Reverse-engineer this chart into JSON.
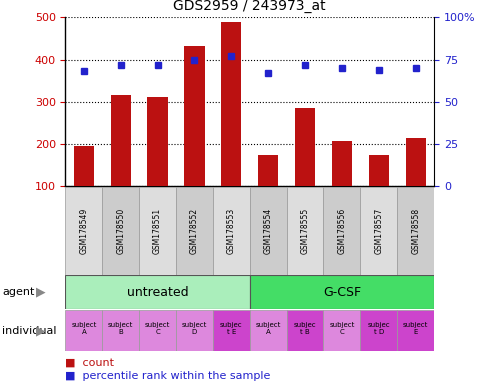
{
  "title": "GDS2959 / 243973_at",
  "samples": [
    "GSM178549",
    "GSM178550",
    "GSM178551",
    "GSM178552",
    "GSM178553",
    "GSM178554",
    "GSM178555",
    "GSM178556",
    "GSM178557",
    "GSM178558"
  ],
  "counts": [
    195,
    315,
    312,
    432,
    490,
    175,
    285,
    208,
    173,
    215
  ],
  "percentile_ranks": [
    68,
    72,
    72,
    75,
    77,
    67,
    72,
    70,
    69,
    70
  ],
  "ylim_left": [
    100,
    500
  ],
  "ylim_right": [
    0,
    100
  ],
  "yticks_left": [
    100,
    200,
    300,
    400,
    500
  ],
  "yticks_right": [
    0,
    25,
    50,
    75,
    100
  ],
  "ytick_labels_right": [
    "0",
    "25",
    "50",
    "75",
    "100%"
  ],
  "bar_color": "#bb1111",
  "dot_color": "#2222cc",
  "agent_groups": [
    {
      "label": "untreated",
      "start": 0,
      "end": 5,
      "color": "#aaeebb"
    },
    {
      "label": "G-CSF",
      "start": 5,
      "end": 10,
      "color": "#44dd66"
    }
  ],
  "individual_labels": [
    "subject\nA",
    "subject\nB",
    "subject\nC",
    "subject\nD",
    "subjec\nt E",
    "subject\nA",
    "subjec\nt B",
    "subject\nC",
    "subjec\nt D",
    "subject\nE"
  ],
  "individual_colors": [
    "#dd88dd",
    "#dd88dd",
    "#dd88dd",
    "#dd88dd",
    "#cc44cc",
    "#dd88dd",
    "#cc44cc",
    "#dd88dd",
    "#cc44cc",
    "#cc44cc"
  ],
  "legend_count_color": "#bb1111",
  "legend_pct_color": "#2222cc",
  "tick_label_color_left": "#cc0000",
  "tick_label_color_right": "#2222cc",
  "grid_color": "#000000",
  "sample_bg_color": "#dddddd",
  "sample_bg_color_alt": "#cccccc"
}
